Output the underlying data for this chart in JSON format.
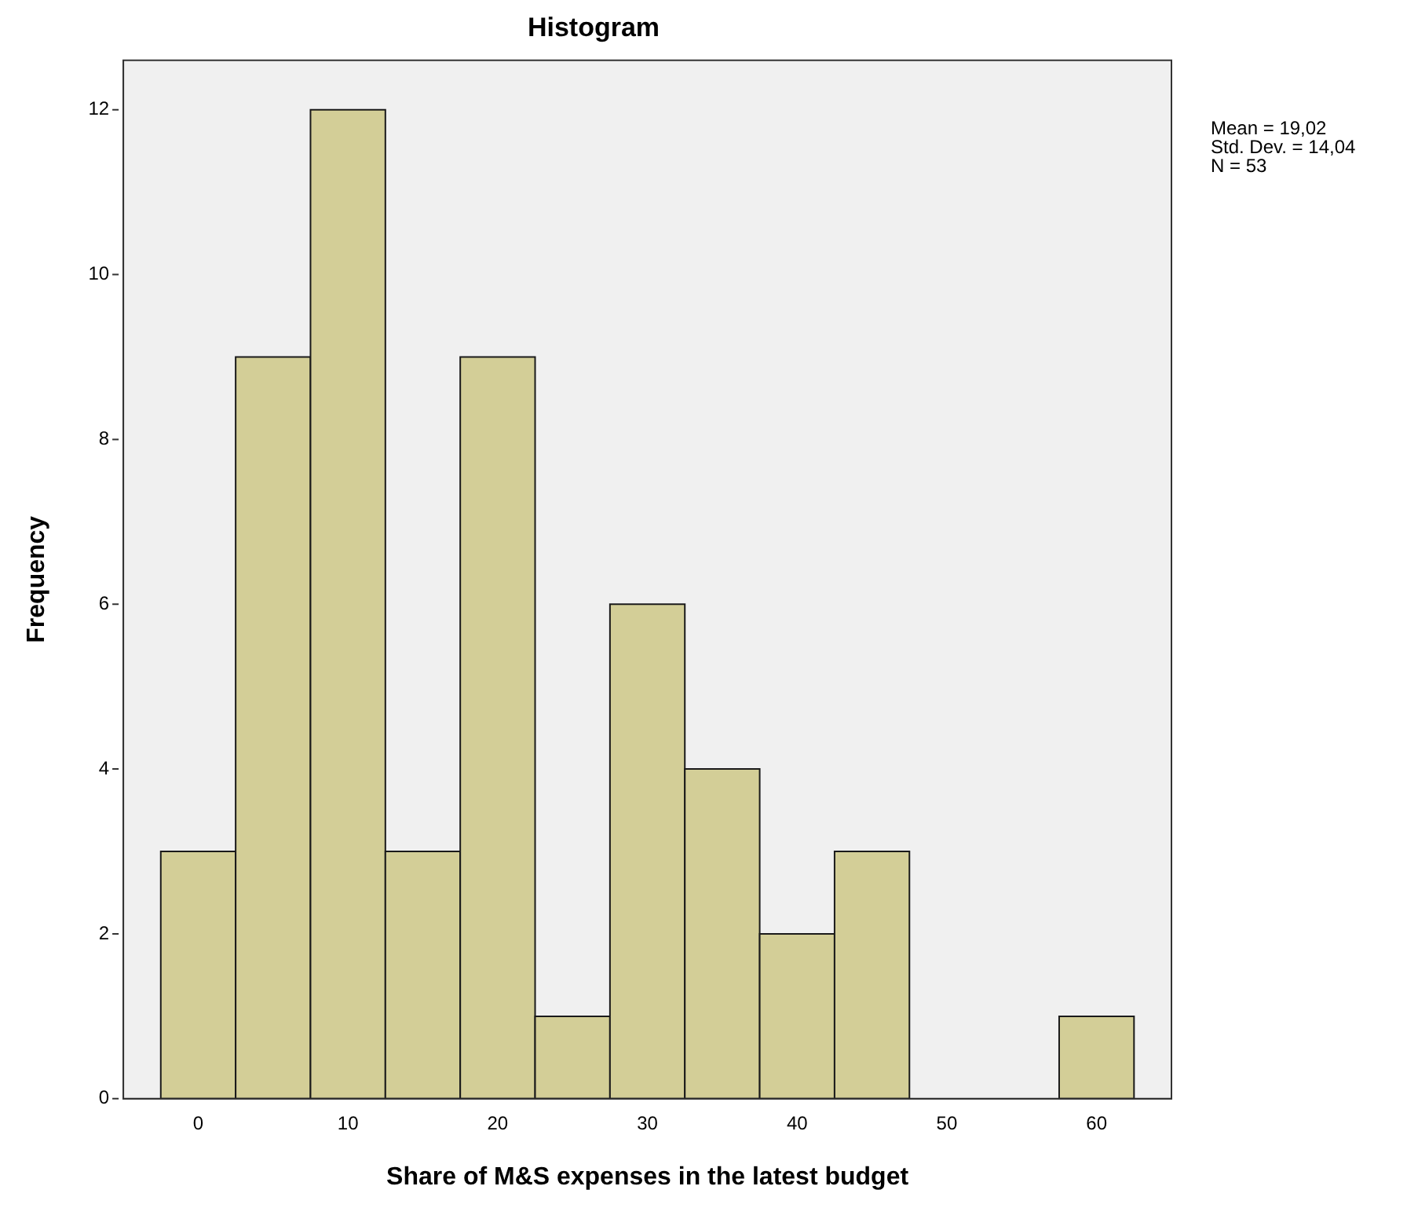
{
  "chart_data": {
    "type": "histogram",
    "title": "Histogram",
    "xlabel": "Share of M&S expenses in the latest budget",
    "ylabel": "Frequency",
    "bins": [
      -2.5,
      2.5,
      7.5,
      12.5,
      17.5,
      22.5,
      27.5,
      32.5,
      37.5,
      42.5,
      47.5,
      52.5,
      57.5,
      62.5
    ],
    "values": [
      3,
      9,
      12,
      3,
      9,
      1,
      6,
      4,
      2,
      3,
      0,
      0,
      1
    ],
    "color": "#d3ce97",
    "xlim": [
      -5,
      65
    ],
    "xticks": [
      0,
      10,
      20,
      30,
      40,
      50,
      60
    ],
    "ylim": [
      0,
      12.6
    ],
    "yticks": [
      0,
      2,
      4,
      6,
      8,
      10,
      12
    ],
    "grid": false,
    "legend": false,
    "annotations": [
      "Mean = 19,02",
      "Std. Dev. = 14,04",
      "N = 53"
    ]
  }
}
